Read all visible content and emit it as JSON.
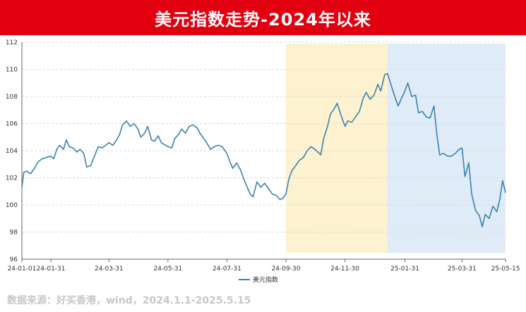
{
  "header": {
    "title": "美元指数走势-2024年以来"
  },
  "footer": {
    "source": "数据来源：好买香港，wind，2024.1.1-2025.5.15"
  },
  "colors": {
    "title_bg": "#e0000f",
    "line": "#3b82b0",
    "band_1": "#fdf2cf",
    "band_2": "#dfebf6",
    "grid": "#d9d9d9",
    "source_text": "#c7c7c7"
  },
  "chart_data": {
    "type": "line",
    "title": "",
    "xlabel": "",
    "ylabel": "",
    "ylim": [
      96,
      112
    ],
    "yticks": [
      96,
      98,
      100,
      102,
      104,
      106,
      108,
      110,
      112
    ],
    "grid": true,
    "legend_position": "bottom-center",
    "x_tick_labels": [
      "24-01-01",
      "24-01-31",
      "24-03-31",
      "24-05-31",
      "24-07-31",
      "24-09-30",
      "24-11-30",
      "25-01-31",
      "25-03-31",
      "25-05-15"
    ],
    "highlight_ranges": [
      {
        "start": "2024-09-30",
        "end": "2025-01-13",
        "color": "#fdf2cf"
      },
      {
        "start": "2025-01-13",
        "end": "2025-05-15",
        "color": "#dfebf6"
      }
    ],
    "series": [
      {
        "name": "美元指数",
        "color": "#3b82b0",
        "points": [
          [
            "2024-01-01",
            101.3
          ],
          [
            "2024-01-03",
            102.4
          ],
          [
            "2024-01-06",
            102.5
          ],
          [
            "2024-01-10",
            102.3
          ],
          [
            "2024-01-14",
            102.7
          ],
          [
            "2024-01-18",
            103.2
          ],
          [
            "2024-01-22",
            103.4
          ],
          [
            "2024-01-26",
            103.5
          ],
          [
            "2024-01-31",
            103.6
          ],
          [
            "2024-02-03",
            103.4
          ],
          [
            "2024-02-06",
            104.1
          ],
          [
            "2024-02-09",
            104.4
          ],
          [
            "2024-02-13",
            104.1
          ],
          [
            "2024-02-16",
            104.8
          ],
          [
            "2024-02-19",
            104.3
          ],
          [
            "2024-02-23",
            104.2
          ],
          [
            "2024-02-27",
            103.9
          ],
          [
            "2024-03-01",
            104.1
          ],
          [
            "2024-03-05",
            103.8
          ],
          [
            "2024-03-08",
            102.8
          ],
          [
            "2024-03-12",
            102.9
          ],
          [
            "2024-03-16",
            103.6
          ],
          [
            "2024-03-20",
            104.3
          ],
          [
            "2024-03-24",
            104.2
          ],
          [
            "2024-03-31",
            104.6
          ],
          [
            "2024-04-04",
            104.4
          ],
          [
            "2024-04-08",
            104.8
          ],
          [
            "2024-04-11",
            105.2
          ],
          [
            "2024-04-14",
            105.9
          ],
          [
            "2024-04-18",
            106.2
          ],
          [
            "2024-04-22",
            105.8
          ],
          [
            "2024-04-26",
            106.0
          ],
          [
            "2024-04-30",
            105.6
          ],
          [
            "2024-05-03",
            105.0
          ],
          [
            "2024-05-07",
            105.3
          ],
          [
            "2024-05-10",
            105.8
          ],
          [
            "2024-05-14",
            104.8
          ],
          [
            "2024-05-17",
            104.7
          ],
          [
            "2024-05-21",
            105.1
          ],
          [
            "2024-05-24",
            104.6
          ],
          [
            "2024-05-31",
            104.3
          ],
          [
            "2024-06-04",
            104.2
          ],
          [
            "2024-06-07",
            104.9
          ],
          [
            "2024-06-11",
            105.2
          ],
          [
            "2024-06-14",
            105.6
          ],
          [
            "2024-06-18",
            105.3
          ],
          [
            "2024-06-22",
            105.8
          ],
          [
            "2024-06-26",
            105.9
          ],
          [
            "2024-06-30",
            105.7
          ],
          [
            "2024-07-03",
            105.3
          ],
          [
            "2024-07-07",
            104.9
          ],
          [
            "2024-07-10",
            104.6
          ],
          [
            "2024-07-14",
            104.1
          ],
          [
            "2024-07-18",
            104.3
          ],
          [
            "2024-07-22",
            104.4
          ],
          [
            "2024-07-26",
            104.3
          ],
          [
            "2024-07-31",
            103.8
          ],
          [
            "2024-08-03",
            103.2
          ],
          [
            "2024-08-06",
            102.7
          ],
          [
            "2024-08-10",
            103.1
          ],
          [
            "2024-08-14",
            102.6
          ],
          [
            "2024-08-17",
            102.0
          ],
          [
            "2024-08-21",
            101.3
          ],
          [
            "2024-08-24",
            100.8
          ],
          [
            "2024-08-27",
            100.6
          ],
          [
            "2024-08-31",
            101.7
          ],
          [
            "2024-09-04",
            101.3
          ],
          [
            "2024-09-08",
            101.6
          ],
          [
            "2024-09-12",
            101.2
          ],
          [
            "2024-09-16",
            100.8
          ],
          [
            "2024-09-20",
            100.7
          ],
          [
            "2024-09-24",
            100.4
          ],
          [
            "2024-09-27",
            100.5
          ],
          [
            "2024-09-30",
            100.8
          ],
          [
            "2024-10-03",
            101.9
          ],
          [
            "2024-10-06",
            102.5
          ],
          [
            "2024-10-10",
            102.9
          ],
          [
            "2024-10-14",
            103.3
          ],
          [
            "2024-10-18",
            103.5
          ],
          [
            "2024-10-22",
            104.0
          ],
          [
            "2024-10-26",
            104.3
          ],
          [
            "2024-10-30",
            104.1
          ],
          [
            "2024-11-02",
            103.9
          ],
          [
            "2024-11-05",
            103.7
          ],
          [
            "2024-11-08",
            104.9
          ],
          [
            "2024-11-12",
            105.8
          ],
          [
            "2024-11-15",
            106.7
          ],
          [
            "2024-11-19",
            107.1
          ],
          [
            "2024-11-22",
            107.5
          ],
          [
            "2024-11-26",
            106.6
          ],
          [
            "2024-11-30",
            105.8
          ],
          [
            "2024-12-03",
            106.2
          ],
          [
            "2024-12-07",
            106.1
          ],
          [
            "2024-12-11",
            106.5
          ],
          [
            "2024-12-15",
            106.9
          ],
          [
            "2024-12-19",
            107.9
          ],
          [
            "2024-12-22",
            108.3
          ],
          [
            "2024-12-26",
            107.8
          ],
          [
            "2024-12-30",
            108.1
          ],
          [
            "2025-01-03",
            108.9
          ],
          [
            "2025-01-06",
            108.4
          ],
          [
            "2025-01-10",
            109.6
          ],
          [
            "2025-01-13",
            109.7
          ],
          [
            "2025-01-16",
            109.0
          ],
          [
            "2025-01-20",
            108.1
          ],
          [
            "2025-01-24",
            107.3
          ],
          [
            "2025-01-27",
            107.8
          ],
          [
            "2025-01-31",
            108.4
          ],
          [
            "2025-02-03",
            109.0
          ],
          [
            "2025-02-07",
            108.0
          ],
          [
            "2025-02-11",
            108.1
          ],
          [
            "2025-02-14",
            106.8
          ],
          [
            "2025-02-18",
            106.9
          ],
          [
            "2025-02-22",
            106.5
          ],
          [
            "2025-02-26",
            106.4
          ],
          [
            "2025-03-02",
            107.3
          ],
          [
            "2025-03-05",
            105.2
          ],
          [
            "2025-03-08",
            103.7
          ],
          [
            "2025-03-12",
            103.8
          ],
          [
            "2025-03-16",
            103.6
          ],
          [
            "2025-03-20",
            103.6
          ],
          [
            "2025-03-24",
            103.8
          ],
          [
            "2025-03-28",
            104.1
          ],
          [
            "2025-03-31",
            104.2
          ],
          [
            "2025-04-03",
            102.1
          ],
          [
            "2025-04-07",
            103.1
          ],
          [
            "2025-04-10",
            100.8
          ],
          [
            "2025-04-14",
            99.6
          ],
          [
            "2025-04-18",
            99.2
          ],
          [
            "2025-04-21",
            98.4
          ],
          [
            "2025-04-24",
            99.3
          ],
          [
            "2025-04-28",
            99.0
          ],
          [
            "2025-05-02",
            99.9
          ],
          [
            "2025-05-06",
            99.5
          ],
          [
            "2025-05-09",
            100.4
          ],
          [
            "2025-05-12",
            101.8
          ],
          [
            "2025-05-15",
            100.9
          ]
        ]
      }
    ]
  }
}
